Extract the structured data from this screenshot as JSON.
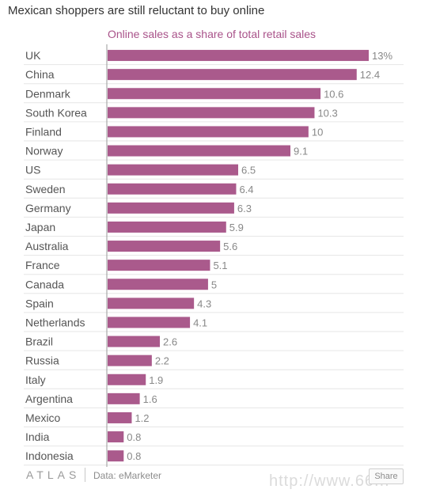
{
  "page_title": "Mexican shoppers are still reluctant to buy online",
  "footer": {
    "logo": "ATLAS",
    "source": "Data: eMarketer",
    "share_label": "Share",
    "watermark": "http://www.66..."
  },
  "colors": {
    "bar": "#aa5a8c",
    "title": "#a9538a",
    "text": "#555555",
    "value_text": "#888888",
    "grid": "#e6e6e6"
  },
  "chart_data": {
    "type": "bar",
    "orientation": "horizontal",
    "title": "Online sales as a share of total retail sales",
    "categories": [
      "UK",
      "China",
      "Denmark",
      "South Korea",
      "Finland",
      "Norway",
      "US",
      "Sweden",
      "Germany",
      "Japan",
      "Australia",
      "France",
      "Canada",
      "Spain",
      "Netherlands",
      "Brazil",
      "Russia",
      "Italy",
      "Argentina",
      "Mexico",
      "India",
      "Indonesia"
    ],
    "values": [
      13,
      12.4,
      10.6,
      10.3,
      10,
      9.1,
      6.5,
      6.4,
      6.3,
      5.9,
      5.6,
      5.1,
      5,
      4.3,
      4.1,
      2.6,
      2.2,
      1.9,
      1.6,
      1.2,
      0.8,
      0.8
    ],
    "value_labels": [
      "13%",
      "12.4",
      "10.6",
      "10.3",
      "10",
      "9.1",
      "6.5",
      "6.4",
      "6.3",
      "5.9",
      "5.6",
      "5.1",
      "5",
      "4.3",
      "4.1",
      "2.6",
      "2.2",
      "1.9",
      "1.6",
      "1.2",
      "0.8",
      "0.8"
    ],
    "xlim": [
      0,
      13
    ],
    "grid": true
  }
}
